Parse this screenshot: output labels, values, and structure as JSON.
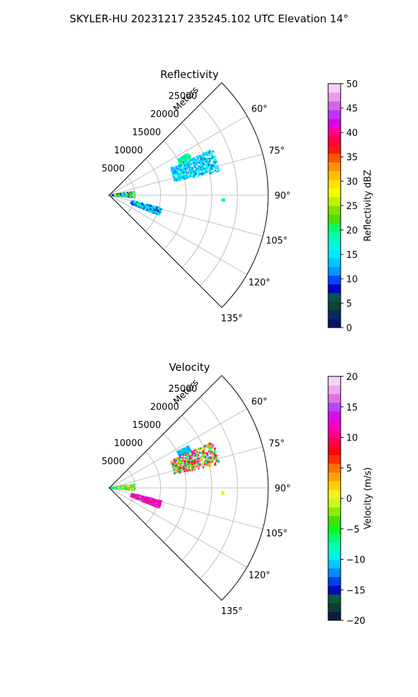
{
  "figure": {
    "suptitle": "SKYLER-HU  20231217  235245.102 UTC Elevation 14°"
  },
  "chart_data": [
    {
      "type": "polar-sector",
      "title": "Reflectivity",
      "range_label": "Meters",
      "range_ticks": [
        5000,
        10000,
        15000,
        20000,
        25000
      ],
      "rmax": 31000,
      "azimuth_range_deg": [
        45,
        135
      ],
      "azimuth_ticks_deg": [
        60,
        75,
        90,
        105,
        120,
        135
      ],
      "grid": true,
      "colorbar": {
        "label": "Reflectivity dBZ",
        "vmin": 0,
        "vmax": 50,
        "ticks": [
          0,
          5,
          10,
          15,
          20,
          25,
          30,
          35,
          40,
          45,
          50
        ]
      },
      "echo_clusters": [
        {
          "range_m": [
            0,
            5000
          ],
          "azimuth_deg": [
            82,
            96
          ],
          "value_range": [
            5,
            30
          ]
        },
        {
          "range_m": [
            4500,
            10500
          ],
          "azimuth_deg": [
            104,
            112
          ],
          "value_range": [
            8,
            20
          ]
        },
        {
          "range_m": [
            15000,
            17500
          ],
          "azimuth_deg": [
            62,
            66
          ],
          "value_range": [
            15,
            22
          ]
        },
        {
          "range_m": [
            13000,
            22000
          ],
          "azimuth_deg": [
            66,
            78
          ],
          "value_range": [
            10,
            18
          ]
        },
        {
          "range_m": [
            22000,
            22500
          ],
          "azimuth_deg": [
            92,
            93
          ],
          "value_range": [
            15,
            20
          ]
        }
      ]
    },
    {
      "type": "polar-sector",
      "title": "Velocity",
      "range_label": "Meters",
      "range_ticks": [
        5000,
        10000,
        15000,
        20000,
        25000
      ],
      "rmax": 31000,
      "azimuth_range_deg": [
        45,
        135
      ],
      "azimuth_ticks_deg": [
        60,
        75,
        90,
        105,
        120,
        135
      ],
      "grid": true,
      "colorbar": {
        "label": "Velocity (m/s)",
        "vmin": -20,
        "vmax": 20,
        "ticks": [
          -20,
          -15,
          -10,
          -5,
          0,
          5,
          10,
          15,
          20
        ]
      },
      "echo_clusters": [
        {
          "range_m": [
            0,
            5000
          ],
          "azimuth_deg": [
            82,
            96
          ],
          "value_range": [
            -12,
            5
          ]
        },
        {
          "range_m": [
            4500,
            10500
          ],
          "azimuth_deg": [
            104,
            112
          ],
          "value_range": [
            8,
            16
          ]
        },
        {
          "range_m": [
            15000,
            17500
          ],
          "azimuth_deg": [
            62,
            66
          ],
          "value_range": [
            -12,
            -10
          ]
        },
        {
          "range_m": [
            13000,
            22000
          ],
          "azimuth_deg": [
            66,
            78
          ],
          "value_range": [
            -10,
            15
          ]
        },
        {
          "range_m": [
            22000,
            22500
          ],
          "azimuth_deg": [
            92,
            93
          ],
          "value_range": [
            0,
            2
          ]
        }
      ]
    }
  ]
}
